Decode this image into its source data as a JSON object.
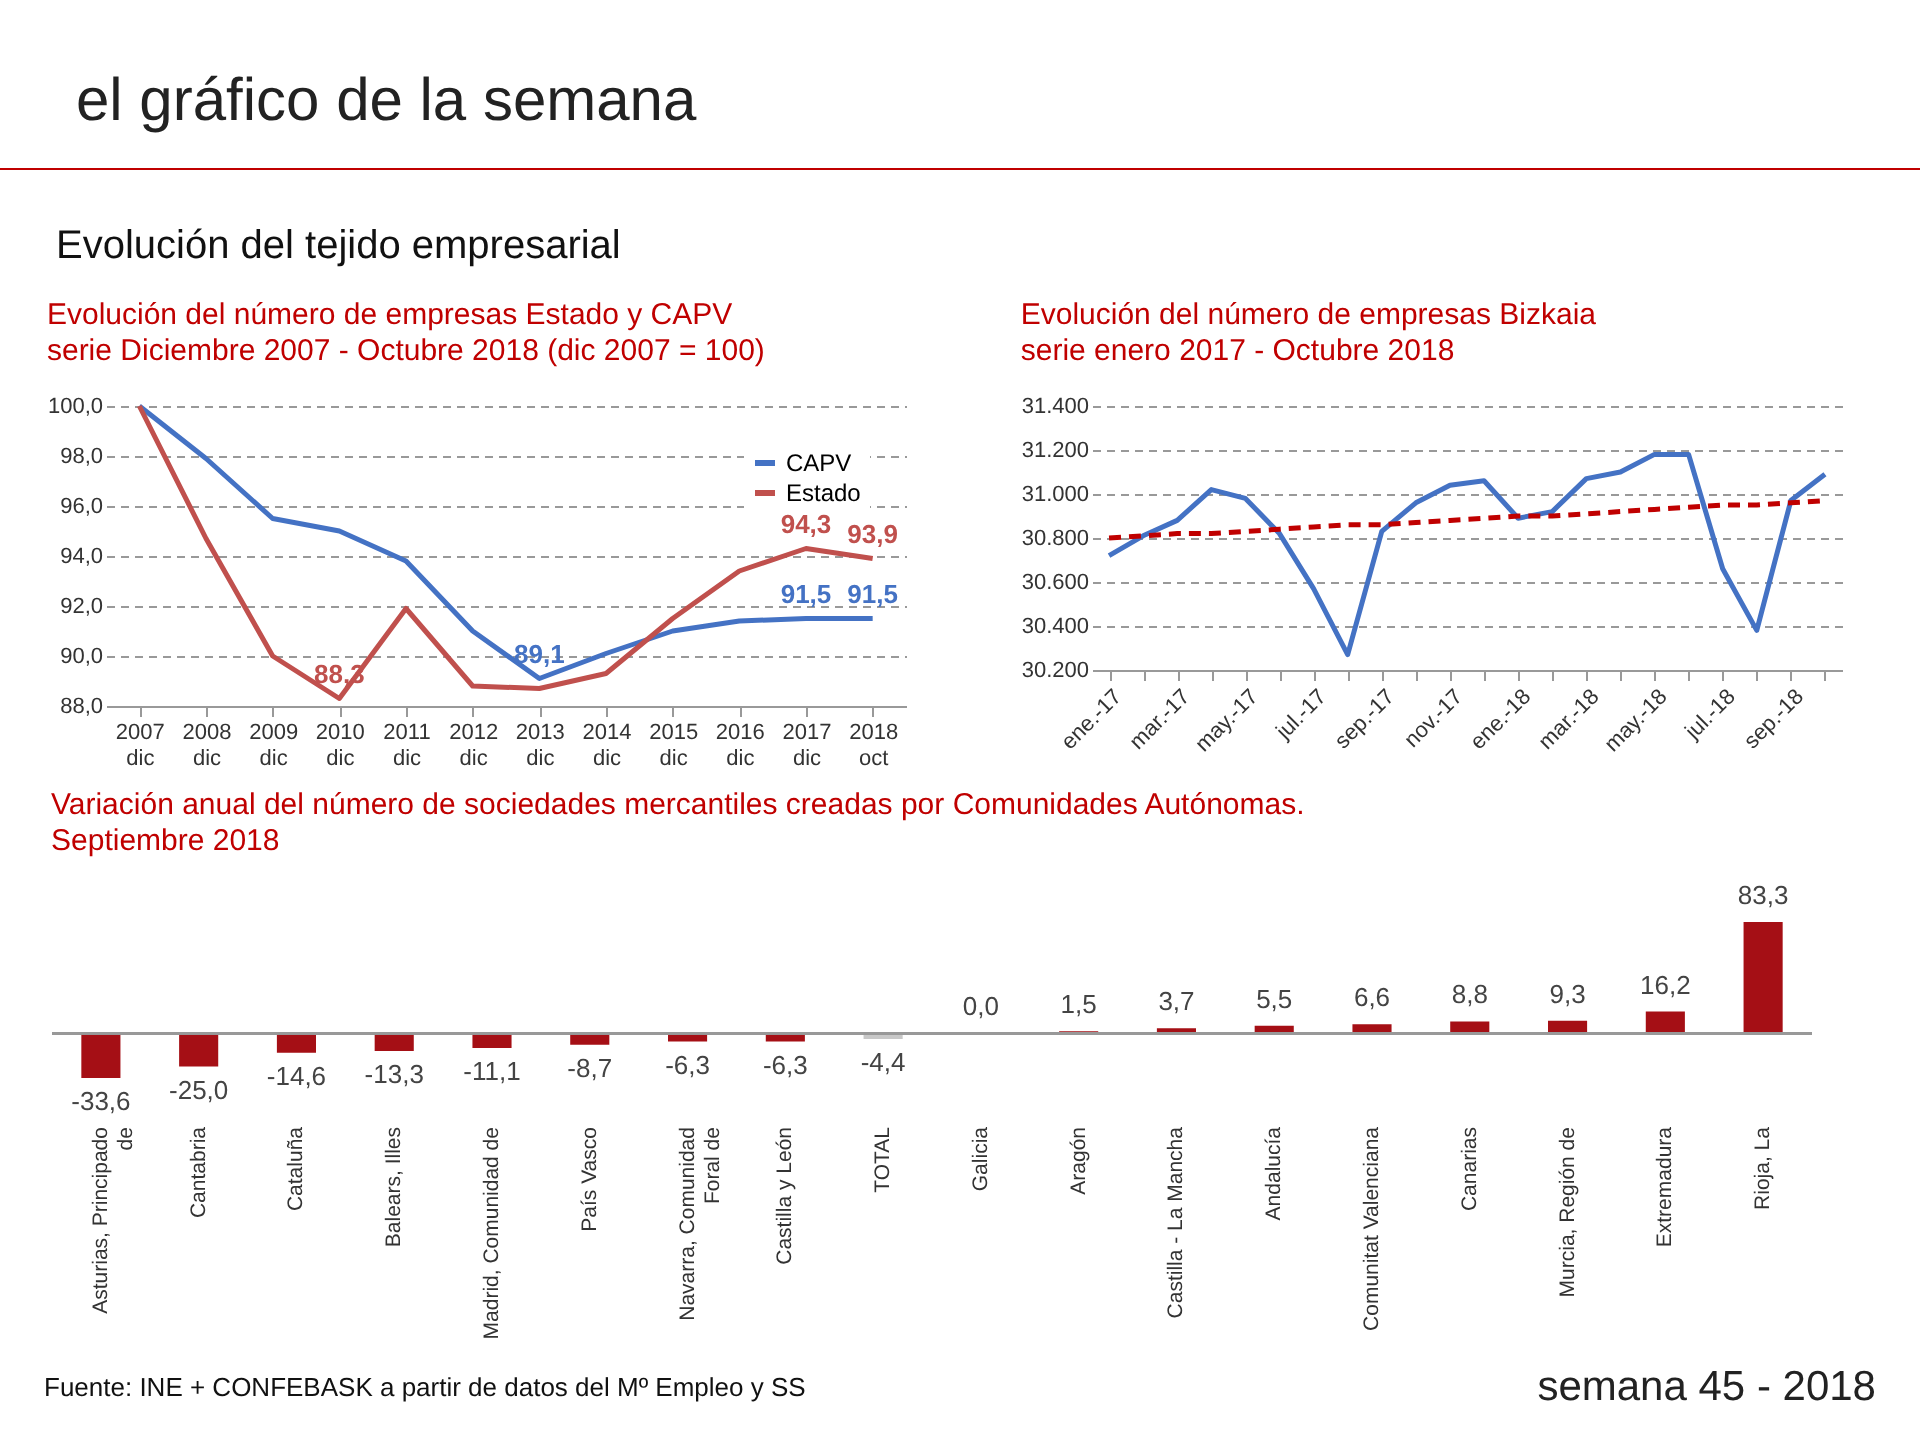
{
  "chart_data": [
    {
      "type": "other",
      "title": "el gráfico de la semana",
      "subtitle": "Evolución del tejido empresarial",
      "annotations": [
        "Fuente: INE + CONFEBASK a partir de datos del Mº Empleo y SS",
        "semana 45 - 2018"
      ]
    },
    {
      "type": "line",
      "title": "Evolución del número de empresas Estado y CAPV",
      "subtitle": "serie Diciembre 2007 - Octubre 2018 (dic 2007 = 100)",
      "categories": [
        "2007 dic",
        "2008 dic",
        "2009 dic",
        "2010 dic",
        "2011 dic",
        "2012 dic",
        "2013 dic",
        "2014 dic",
        "2015 dic",
        "2016 dic",
        "2017 dic",
        "2018 oct"
      ],
      "series": [
        {
          "name": "CAPV",
          "color": "#4472c4",
          "values": [
            100,
            97.9,
            95.5,
            95.0,
            93.8,
            91.0,
            89.1,
            90.1,
            91.0,
            91.4,
            91.5,
            91.5
          ],
          "value_labels": [
            null,
            null,
            null,
            null,
            null,
            null,
            "89,1",
            null,
            null,
            null,
            "91,5",
            "91,5"
          ]
        },
        {
          "name": "Estado",
          "color": "#c0504d",
          "values": [
            100,
            94.7,
            90.0,
            88.3,
            91.9,
            88.8,
            88.7,
            89.3,
            91.5,
            93.4,
            94.3,
            93.9
          ],
          "value_labels": [
            null,
            null,
            null,
            "88,3",
            null,
            null,
            null,
            null,
            null,
            null,
            "94,3",
            "93,9"
          ]
        }
      ],
      "ylim": [
        88,
        100
      ],
      "yticks": [
        {
          "value": 88,
          "label": "88,0"
        },
        {
          "value": 90,
          "label": "90,0"
        },
        {
          "value": 92,
          "label": "92,0"
        },
        {
          "value": 94,
          "label": "94,0"
        },
        {
          "value": 96,
          "label": "96,0"
        },
        {
          "value": 98,
          "label": "98,0"
        },
        {
          "value": 100,
          "label": "100,0"
        }
      ],
      "grid": "y",
      "legend": "top right"
    },
    {
      "type": "line",
      "title": "Evolución del número de empresas Bizkaia",
      "subtitle": "serie enero 2017 - Octubre 2018",
      "categories": [
        "ene.-17",
        null,
        "mar.-17",
        null,
        "may.-17",
        null,
        "jul.-17",
        null,
        "sep.-17",
        null,
        "nov.-17",
        null,
        "ene.-18",
        null,
        "mar.-18",
        null,
        "may.-18",
        null,
        "jul.-18",
        null,
        "sep.-18",
        null
      ],
      "series": [
        {
          "color": "#4472c4",
          "values": [
            30720,
            30810,
            30880,
            31020,
            30980,
            30820,
            30570,
            30270,
            30830,
            30960,
            31040,
            31060,
            30890,
            30920,
            31070,
            31100,
            31180,
            31180,
            30660,
            30380,
            30970,
            31090
          ]
        },
        {
          "color": "#c00000",
          "line_style": "dashed",
          "values": [
            30800,
            30810,
            30820,
            30820,
            30830,
            30840,
            30850,
            30860,
            30860,
            30870,
            30880,
            30890,
            30900,
            30900,
            30910,
            30920,
            30930,
            30940,
            30950,
            30950,
            30960,
            30970
          ]
        }
      ],
      "ylim": [
        30200,
        31400
      ],
      "yticks": [
        {
          "value": 30200,
          "label": "30.200"
        },
        {
          "value": 30400,
          "label": "30.400"
        },
        {
          "value": 30600,
          "label": "30.600"
        },
        {
          "value": 30800,
          "label": "30.800"
        },
        {
          "value": 31000,
          "label": "31.000"
        },
        {
          "value": 31200,
          "label": "31.200"
        },
        {
          "value": 31400,
          "label": "31.400"
        }
      ],
      "grid": "y"
    },
    {
      "type": "bar",
      "title": "Variación anual del número de sociedades mercantiles creadas por Comunidades Autónomas.",
      "subtitle": "Septiembre 2018",
      "categories": [
        "Asturias, Principado de",
        "Cantabria",
        "Cataluña",
        "Balears, Illes",
        "Madrid, Comunidad de",
        "País Vasco",
        "Navarra, Comunidad Foral de",
        "Castilla y León",
        "TOTAL",
        "Galicia",
        "Aragón",
        "Castilla - La Mancha",
        "Andalucía",
        "Comunitat Valenciana",
        "Canarias",
        "Murcia, Región de",
        "Extremadura",
        "Rioja, La"
      ],
      "values": [
        -33.6,
        -25.0,
        -14.6,
        -13.3,
        -11.1,
        -8.7,
        -6.3,
        -6.3,
        -4.4,
        0.0,
        1.5,
        3.7,
        5.5,
        6.6,
        8.8,
        9.3,
        16.2,
        83.3
      ],
      "value_labels": [
        "-33,6",
        "-25,0",
        "-14,6",
        "-13,3",
        "-11,1",
        "-8,7",
        "-6,3",
        "-6,3",
        "-4,4",
        "0,0",
        "1,5",
        "3,7",
        "5,5",
        "6,6",
        "8,8",
        "9,3",
        "16,2",
        "83,3"
      ],
      "colors": [
        "#a50f15",
        "#a50f15",
        "#a50f15",
        "#a50f15",
        "#a50f15",
        "#a50f15",
        "#a50f15",
        "#a50f15",
        "#c8c8c8",
        "#a50f15",
        "#a50f15",
        "#a50f15",
        "#a50f15",
        "#a50f15",
        "#a50f15",
        "#a50f15",
        "#a50f15",
        "#a50f15"
      ]
    }
  ]
}
